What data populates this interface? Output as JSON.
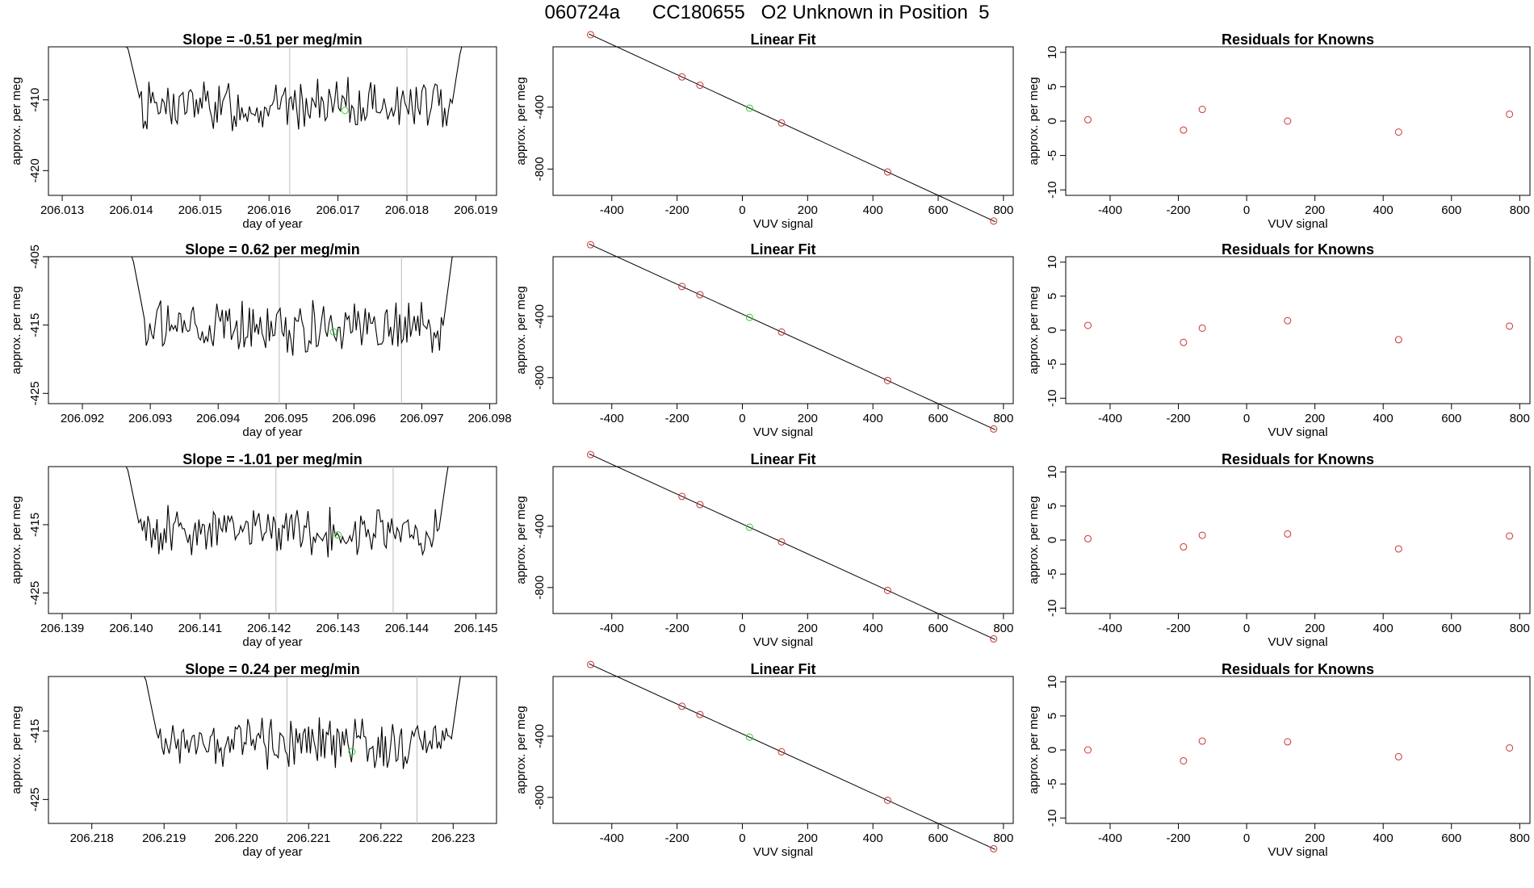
{
  "title": "060724a      CC180655   O2 Unknown in Position  5",
  "colors": {
    "trace": "#000000",
    "known": "#cc3333",
    "unknown": "#33cc33",
    "vline": "#bbbbbb",
    "axis": "#000000"
  },
  "chart_data": [
    {
      "type": "line",
      "title": "Slope =  -0.51  per meg/min",
      "xlabel": "day of year",
      "ylabel": "approx. per meg",
      "xlim": [
        206.0128,
        206.0193
      ],
      "ylim": [
        -423.5,
        -402.5
      ],
      "xticks": [
        "206.013",
        "206.014",
        "206.015",
        "206.016",
        "206.017",
        "206.018",
        "206.019"
      ],
      "yticks": [
        "-420",
        "-410"
      ],
      "start": 206.0139,
      "end": 206.01885,
      "base": -410.8,
      "amp": 2.6,
      "vlines": [
        206.0163,
        206.018
      ],
      "unknown_point": [
        206.0171,
        -411.5
      ]
    },
    {
      "type": "scatter",
      "title": "Linear Fit",
      "xlabel": "VUV signal",
      "ylabel": "approx. per meg",
      "xlim": [
        -580,
        830
      ],
      "ylim": [
        -970,
        -10
      ],
      "xticks": [
        "-400",
        "-200",
        "0",
        "200",
        "400",
        "600",
        "800"
      ],
      "yticks": [
        "-800",
        "-400"
      ],
      "fit": {
        "slope": -0.975,
        "intercept": -385
      },
      "knowns_x": [
        -465,
        -185,
        -130,
        120,
        445,
        770
      ],
      "unknown_x": 22
    },
    {
      "type": "scatter",
      "title": "Residuals for Knowns",
      "xlabel": "VUV signal",
      "ylabel": "approx. per meg",
      "xlim": [
        -530,
        830
      ],
      "ylim": [
        -10.8,
        10.8
      ],
      "xticks": [
        "-400",
        "-200",
        "0",
        "200",
        "400",
        "600",
        "800"
      ],
      "yticks": [
        "-10",
        "-5",
        "0",
        "5",
        "10"
      ],
      "x": [
        -465,
        -185,
        -130,
        120,
        445,
        770
      ],
      "y": [
        0.2,
        -1.3,
        1.7,
        0.0,
        -1.6,
        1.0
      ]
    },
    {
      "type": "line",
      "title": "Slope =  0.62  per meg/min",
      "xlabel": "day of year",
      "ylabel": "approx. per meg",
      "xlim": [
        206.0915,
        206.0981
      ],
      "ylim": [
        -426.5,
        -405
      ],
      "xticks": [
        "206.092",
        "206.093",
        "206.094",
        "206.095",
        "206.096",
        "206.097",
        "206.098"
      ],
      "yticks": [
        "-425",
        "-415",
        "-405"
      ],
      "start": 206.0927,
      "end": 206.0975,
      "base": -415.5,
      "amp": 2.8,
      "vlines": [
        206.0949,
        206.0967
      ],
      "unknown_point": [
        206.0957,
        -416.0
      ]
    },
    {
      "type": "scatter",
      "title": "Linear Fit",
      "xlabel": "VUV signal",
      "ylabel": "approx. per meg",
      "xlim": [
        -580,
        830
      ],
      "ylim": [
        -970,
        -10
      ],
      "xticks": [
        "-400",
        "-200",
        "0",
        "200",
        "400",
        "600",
        "800"
      ],
      "yticks": [
        "-800",
        "-400"
      ],
      "fit": {
        "slope": -0.975,
        "intercept": -385
      },
      "knowns_x": [
        -465,
        -185,
        -130,
        120,
        445,
        770
      ],
      "unknown_x": 22
    },
    {
      "type": "scatter",
      "title": "Residuals for Knowns",
      "xlabel": "VUV signal",
      "ylabel": "approx. per meg",
      "xlim": [
        -530,
        830
      ],
      "ylim": [
        -10.8,
        10.8
      ],
      "xticks": [
        "-400",
        "-200",
        "0",
        "200",
        "400",
        "600",
        "800"
      ],
      "yticks": [
        "-10",
        "-5",
        "0",
        "5",
        "10"
      ],
      "x": [
        -465,
        -185,
        -130,
        120,
        445,
        770
      ],
      "y": [
        0.7,
        -1.8,
        0.3,
        1.4,
        -1.4,
        0.6
      ]
    },
    {
      "type": "line",
      "title": "Slope =  -1.01  per meg/min",
      "xlabel": "day of year",
      "ylabel": "approx. per meg",
      "xlim": [
        206.1388,
        206.1453
      ],
      "ylim": [
        -428,
        -406.5
      ],
      "xticks": [
        "206.139",
        "206.140",
        "206.141",
        "206.142",
        "206.143",
        "206.144",
        "206.145"
      ],
      "yticks": [
        "-425",
        "-415"
      ],
      "start": 206.1399,
      "end": 206.14465,
      "base": -416.0,
      "amp": 2.8,
      "vlines": [
        206.1421,
        206.1438
      ],
      "unknown_point": [
        206.143,
        -416.5
      ]
    },
    {
      "type": "scatter",
      "title": "Linear Fit",
      "xlabel": "VUV signal",
      "ylabel": "approx. per meg",
      "xlim": [
        -580,
        830
      ],
      "ylim": [
        -970,
        -10
      ],
      "xticks": [
        "-400",
        "-200",
        "0",
        "200",
        "400",
        "600",
        "800"
      ],
      "yticks": [
        "-800",
        "-400"
      ],
      "fit": {
        "slope": -0.975,
        "intercept": -385
      },
      "knowns_x": [
        -465,
        -185,
        -130,
        120,
        445,
        770
      ],
      "unknown_x": 22
    },
    {
      "type": "scatter",
      "title": "Residuals for Knowns",
      "xlabel": "VUV signal",
      "ylabel": "approx. per meg",
      "xlim": [
        -530,
        830
      ],
      "ylim": [
        -10.8,
        10.8
      ],
      "xticks": [
        "-400",
        "-200",
        "0",
        "200",
        "400",
        "600",
        "800"
      ],
      "yticks": [
        "-10",
        "-5",
        "0",
        "5",
        "10"
      ],
      "x": [
        -465,
        -185,
        -130,
        120,
        445,
        770
      ],
      "y": [
        0.2,
        -1.0,
        0.7,
        0.9,
        -1.3,
        0.6
      ]
    },
    {
      "type": "line",
      "title": "Slope =  0.24  per meg/min",
      "xlabel": "day of year",
      "ylabel": "approx. per meg",
      "xlim": [
        206.2174,
        206.2236
      ],
      "ylim": [
        -428.5,
        -407
      ],
      "xticks": [
        "206.218",
        "206.219",
        "206.220",
        "206.221",
        "206.222",
        "206.223"
      ],
      "yticks": [
        "-425",
        "-415"
      ],
      "start": 206.2187,
      "end": 206.22315,
      "base": -416.5,
      "amp": 2.8,
      "vlines": [
        206.2207,
        206.2225
      ],
      "unknown_point": [
        206.2216,
        -418.0
      ]
    },
    {
      "type": "scatter",
      "title": "Linear Fit",
      "xlabel": "VUV signal",
      "ylabel": "approx. per meg",
      "xlim": [
        -580,
        830
      ],
      "ylim": [
        -970,
        -10
      ],
      "xticks": [
        "-400",
        "-200",
        "0",
        "200",
        "400",
        "600",
        "800"
      ],
      "yticks": [
        "-800",
        "-400"
      ],
      "fit": {
        "slope": -0.975,
        "intercept": -385
      },
      "knowns_x": [
        -465,
        -185,
        -130,
        120,
        445,
        770
      ],
      "unknown_x": 22
    },
    {
      "type": "scatter",
      "title": "Residuals for Knowns",
      "xlabel": "VUV signal",
      "ylabel": "approx. per meg",
      "xlim": [
        -530,
        830
      ],
      "ylim": [
        -10.8,
        10.8
      ],
      "xticks": [
        "-400",
        "-200",
        "0",
        "200",
        "400",
        "600",
        "800"
      ],
      "yticks": [
        "-10",
        "-5",
        "0",
        "5",
        "10"
      ],
      "x": [
        -465,
        -185,
        -130,
        120,
        445,
        770
      ],
      "y": [
        0.0,
        -1.6,
        1.3,
        1.2,
        -1.0,
        0.3
      ]
    }
  ]
}
